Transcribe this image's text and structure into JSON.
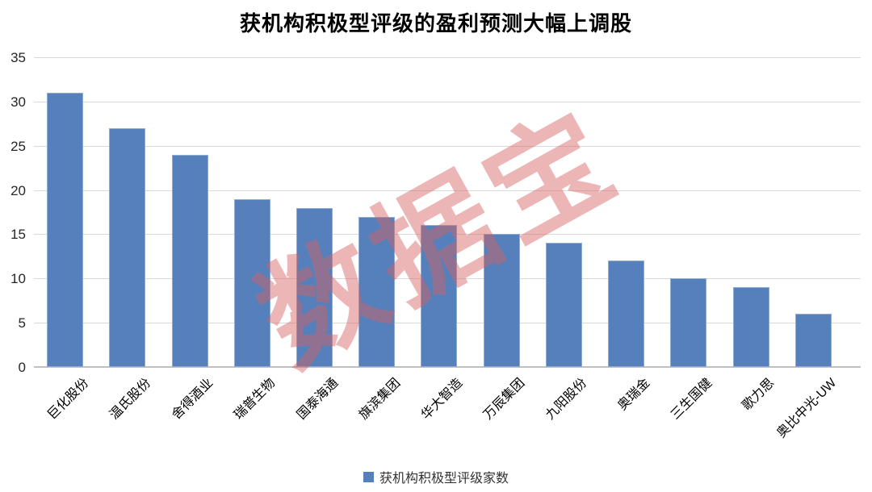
{
  "chart_data": {
    "type": "bar",
    "title": "获机构积极型评级的盈利预测大幅上调股",
    "categories": [
      "巨化股份",
      "温氏股份",
      "舍得酒业",
      "瑞普生物",
      "国泰海通",
      "旗滨集团",
      "华大智造",
      "万辰集团",
      "九阳股份",
      "奥瑞金",
      "三生国健",
      "歌力思",
      "奥比中光-UW"
    ],
    "values": [
      31,
      27,
      24,
      19,
      18,
      17,
      16,
      15,
      14,
      12,
      10,
      9,
      6
    ],
    "series_name": "获机构积极型评级家数",
    "xlabel": "",
    "ylabel": "",
    "ylim": [
      0,
      35
    ],
    "y_ticks": [
      0,
      5,
      10,
      15,
      20,
      25,
      30,
      35
    ],
    "grid": true,
    "legend_position": "bottom",
    "bar_color": "#5580BB",
    "gridline_color": "#d9d9d9",
    "watermark_text": "数据宝",
    "watermark_color": "#D95F5F"
  }
}
